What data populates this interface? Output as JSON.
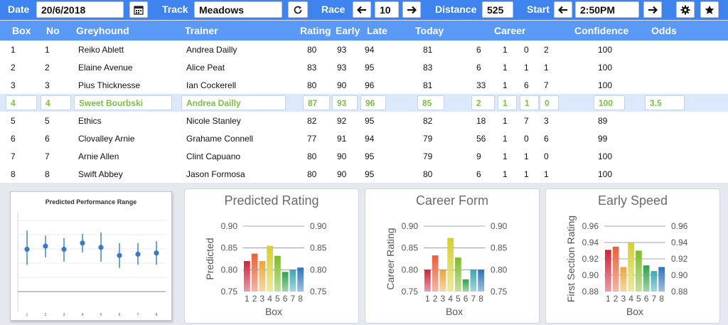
{
  "toolbar": {
    "date_label": "Date",
    "date_value": "20/6/2018",
    "track_label": "Track",
    "track_value": "Meadows",
    "race_label": "Race",
    "race_value": "10",
    "distance_label": "Distance",
    "distance_value": "525",
    "start_label": "Start",
    "start_value": "2:50PM",
    "icons": {
      "calendar": "calendar-icon",
      "refresh": "refresh-icon",
      "prev": "arrow-left-icon",
      "next": "arrow-right-icon",
      "settings": "gear-icon",
      "favorite": "star-icon"
    }
  },
  "table": {
    "headers": [
      "Box",
      "No",
      "Greyhound",
      "Trainer",
      "Rating",
      "Early",
      "Late",
      "Today",
      "Career",
      "Confidence",
      "Odds"
    ],
    "rows": [
      {
        "box": "1",
        "no": "1",
        "greyhound": "Reiko Ablett",
        "trainer": "Andrea Dailly",
        "rating": "80",
        "early": "93",
        "late": "94",
        "today": "81",
        "c1": "6",
        "c2": "1",
        "c3": "0",
        "c4": "2",
        "confidence": "100",
        "odds": ""
      },
      {
        "box": "2",
        "no": "2",
        "greyhound": "Elaine Avenue",
        "trainer": "Alice Peat",
        "rating": "83",
        "early": "93",
        "late": "95",
        "today": "83",
        "c1": "6",
        "c2": "1",
        "c3": "1",
        "c4": "1",
        "confidence": "100",
        "odds": ""
      },
      {
        "box": "3",
        "no": "3",
        "greyhound": "Pius Thicknesse",
        "trainer": "Ian Cockerell",
        "rating": "80",
        "early": "90",
        "late": "96",
        "today": "81",
        "c1": "33",
        "c2": "1",
        "c3": "6",
        "c4": "7",
        "confidence": "100",
        "odds": ""
      },
      {
        "box": "4",
        "no": "4",
        "greyhound": "Sweet Bourbski",
        "trainer": "Andrea Dailly",
        "rating": "87",
        "early": "93",
        "late": "96",
        "today": "85",
        "c1": "2",
        "c2": "1",
        "c3": "1",
        "c4": "0",
        "confidence": "100",
        "odds": "3.5"
      },
      {
        "box": "5",
        "no": "5",
        "greyhound": "Ethics",
        "trainer": "Nicole Stanley",
        "rating": "82",
        "early": "92",
        "late": "95",
        "today": "82",
        "c1": "18",
        "c2": "1",
        "c3": "7",
        "c4": "3",
        "confidence": "89",
        "odds": ""
      },
      {
        "box": "6",
        "no": "6",
        "greyhound": "Clovalley Arnie",
        "trainer": "Grahame Connell",
        "rating": "77",
        "early": "91",
        "late": "94",
        "today": "79",
        "c1": "56",
        "c2": "1",
        "c3": "0",
        "c4": "6",
        "confidence": "99",
        "odds": ""
      },
      {
        "box": "7",
        "no": "7",
        "greyhound": "Arnie Allen",
        "trainer": "Clint Capuano",
        "rating": "80",
        "early": "90",
        "late": "95",
        "today": "79",
        "c1": "9",
        "c2": "1",
        "c3": "1",
        "c4": "0",
        "confidence": "100",
        "odds": ""
      },
      {
        "box": "8",
        "no": "8",
        "greyhound": "Swift Abbey",
        "trainer": "Jason Formosa",
        "rating": "80",
        "early": "90",
        "late": "95",
        "today": "80",
        "c1": "6",
        "c2": "1",
        "c3": "1",
        "c4": "1",
        "confidence": "100",
        "odds": ""
      }
    ],
    "selected_row_index": 3,
    "selected_text_color": "#7ac043"
  },
  "charts": {
    "range": {
      "title": "Predicted Performance Range",
      "x_ticks": [
        "1",
        "2",
        "3",
        "4",
        "5",
        "6",
        "7",
        "8"
      ],
      "points": [
        {
          "mid": 0.82,
          "lo": 0.795,
          "hi": 0.85
        },
        {
          "mid": 0.825,
          "lo": 0.807,
          "hi": 0.842
        },
        {
          "mid": 0.82,
          "lo": 0.8,
          "hi": 0.838
        },
        {
          "mid": 0.83,
          "lo": 0.815,
          "hi": 0.845
        },
        {
          "mid": 0.823,
          "lo": 0.8,
          "hi": 0.847
        },
        {
          "mid": 0.81,
          "lo": 0.79,
          "hi": 0.83
        },
        {
          "mid": 0.812,
          "lo": 0.795,
          "hi": 0.83
        },
        {
          "mid": 0.814,
          "lo": 0.795,
          "hi": 0.833
        }
      ],
      "ylim": [
        0.72,
        0.88
      ]
    },
    "bars": [
      {
        "title": "Predicted Rating",
        "ylabel": "Predicted",
        "xlabel": "Box",
        "ylim": [
          0.75,
          0.9
        ],
        "left_ticks": [
          "0.90",
          "0.85",
          "0.80",
          "0.75"
        ],
        "right_ticks": [
          "0.90",
          "0.85",
          "0.80",
          "0.75"
        ],
        "tick_values": [
          0.9,
          0.85,
          0.8,
          0.75
        ],
        "categories": [
          "1",
          "2",
          "3",
          "4",
          "5",
          "6",
          "7",
          "8"
        ],
        "values": [
          0.82,
          0.837,
          0.82,
          0.855,
          0.832,
          0.795,
          0.8,
          0.805
        ]
      },
      {
        "title": "Career Form",
        "ylabel": "Career Rating",
        "xlabel": "Box",
        "ylim": [
          0.75,
          0.9
        ],
        "left_ticks": [
          "0.90",
          "0.85",
          "0.80",
          "0.75"
        ],
        "right_ticks": [
          "0.90",
          "0.85",
          "0.80",
          "0.75"
        ],
        "tick_values": [
          0.9,
          0.85,
          0.8,
          0.75
        ],
        "categories": [
          "1",
          "2",
          "3",
          "4",
          "5",
          "6",
          "7",
          "8"
        ],
        "values": [
          0.8,
          0.833,
          0.8,
          0.873,
          0.828,
          0.778,
          0.8,
          0.8
        ]
      },
      {
        "title": "Early Speed",
        "ylabel": "First Section Rating",
        "xlabel": "Box",
        "ylim": [
          0.88,
          0.96
        ],
        "left_ticks": [
          "0.96",
          "0.94",
          "0.92",
          "0.90",
          "0.88"
        ],
        "right_ticks": [
          "0.96",
          "0.94",
          "0.92",
          "0.90",
          "0.88"
        ],
        "tick_values": [
          0.96,
          0.94,
          0.92,
          0.9,
          0.88
        ],
        "categories": [
          "1",
          "2",
          "3",
          "4",
          "5",
          "6",
          "7",
          "8"
        ],
        "values": [
          0.931,
          0.935,
          0.91,
          0.94,
          0.93,
          0.912,
          0.905,
          0.91
        ]
      }
    ],
    "bar_colors": [
      "#d4213a",
      "#e8603a",
      "#eaa63c",
      "#d6cf2a",
      "#7fba2a",
      "#2da24b",
      "#3aa6b4",
      "#2e72b5"
    ]
  }
}
